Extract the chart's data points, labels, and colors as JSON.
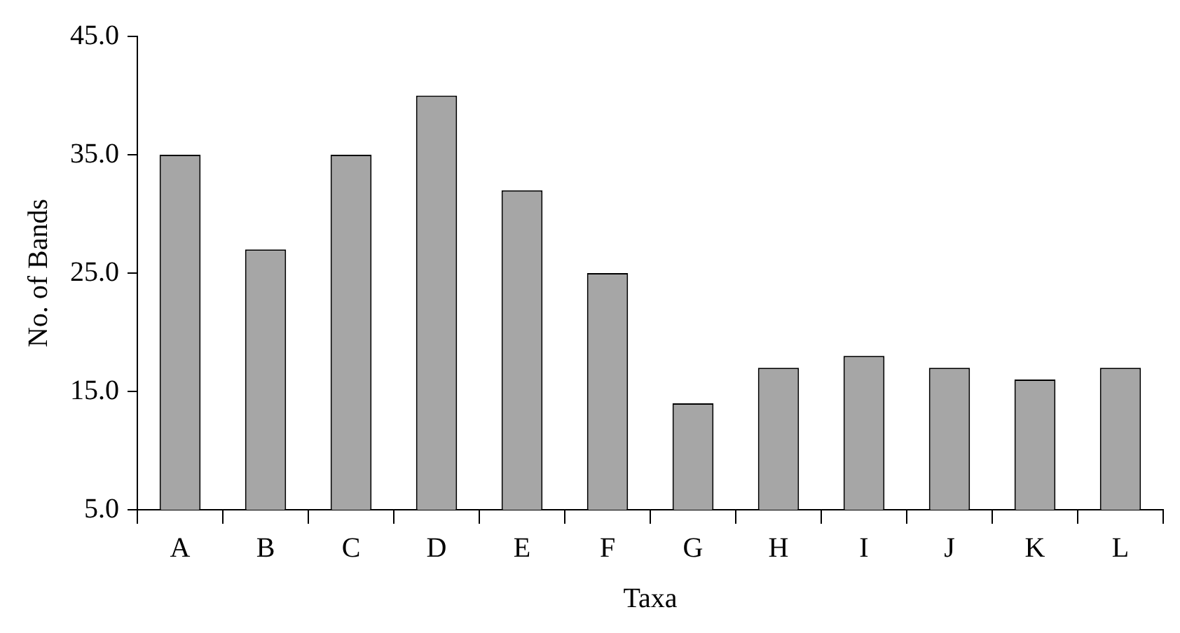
{
  "chart_data": {
    "type": "bar",
    "xlabel": "Taxa",
    "ylabel": "No. of Bands",
    "categories": [
      "A",
      "B",
      "C",
      "D",
      "E",
      "F",
      "G",
      "H",
      "I",
      "J",
      "K",
      "L"
    ],
    "values": [
      35,
      27,
      35,
      40,
      32,
      25,
      14,
      17,
      18,
      17,
      16,
      17
    ],
    "color": "#a6a6a6",
    "ylim": [
      5,
      45
    ],
    "yticks": [
      {
        "value": 5,
        "label": "5.0"
      },
      {
        "value": 15,
        "label": "15.0"
      },
      {
        "value": 25,
        "label": "25.0"
      },
      {
        "value": 35,
        "label": "35.0"
      },
      {
        "value": 45,
        "label": "45.0"
      }
    ],
    "grid": false,
    "legend": false
  }
}
